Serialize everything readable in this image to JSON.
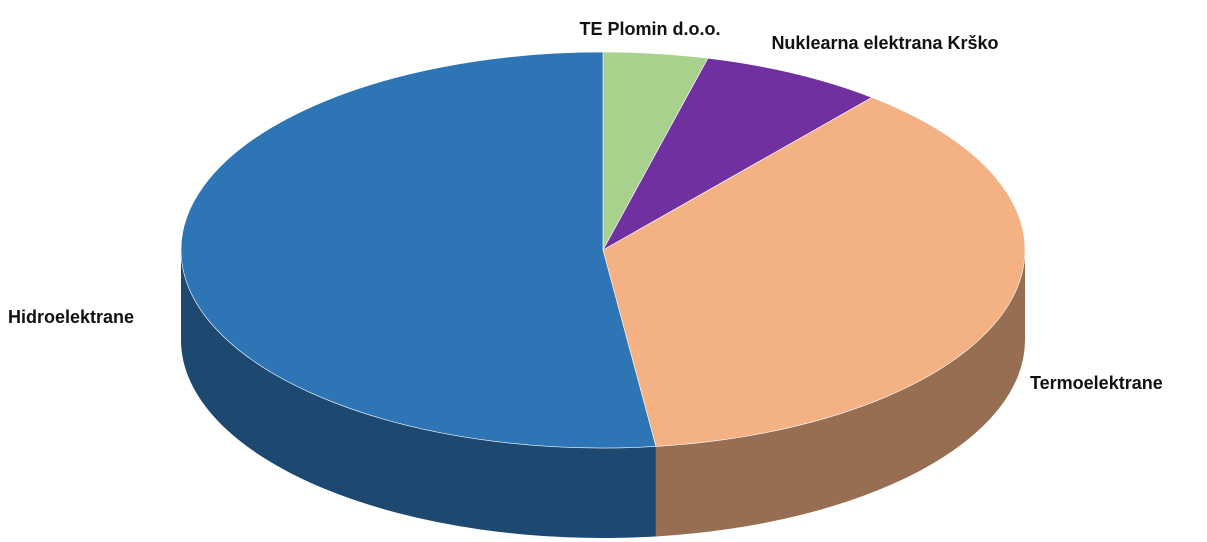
{
  "chart_data": {
    "type": "pie",
    "categories": [
      "TE Plomin d.o.o.",
      "Nuklearna elektrana Krško",
      "Termoelektrane",
      "Hidroelektrane"
    ],
    "values": [
      4,
      7,
      37,
      52
    ],
    "colors": [
      "#a9d18e",
      "#7030a0",
      "#f4b183",
      "#2e75b6"
    ]
  }
}
